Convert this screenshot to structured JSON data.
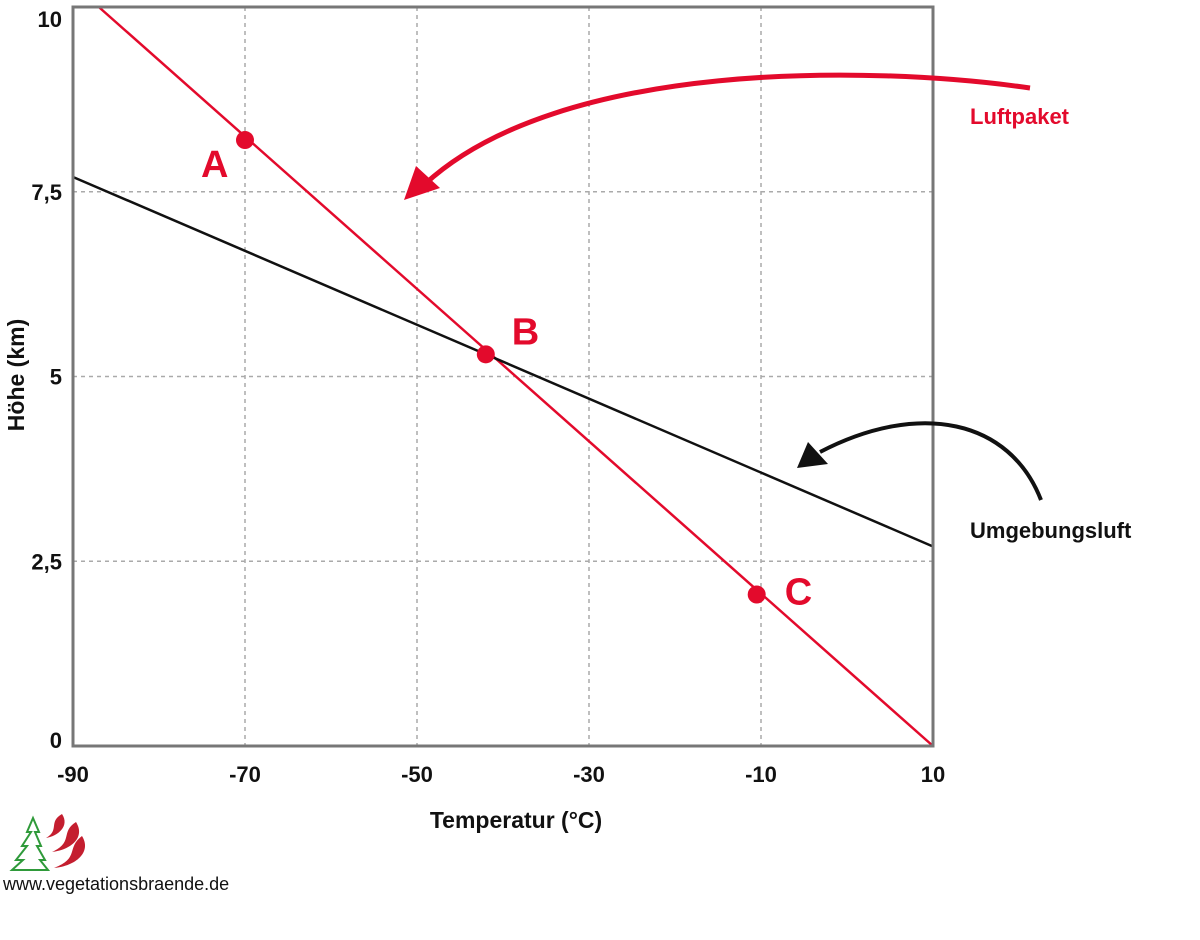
{
  "chart_data": {
    "type": "line",
    "title": "",
    "xlabel": "Temperatur (°C)",
    "ylabel": "Höhe (km)",
    "xlim": [
      -90,
      10
    ],
    "ylim": [
      0,
      10
    ],
    "x_ticks": [
      -90,
      -70,
      -50,
      -30,
      -10,
      10
    ],
    "x_tick_labels": [
      "-90",
      "-70",
      "-50",
      "-30",
      "-10",
      "10"
    ],
    "y_ticks": [
      0,
      2.5,
      5,
      7.5,
      10
    ],
    "y_tick_labels": [
      "0",
      "2,5",
      "5",
      "7,5",
      "10"
    ],
    "grid": true,
    "series": [
      {
        "name": "Luftpaket",
        "color": "#e30a2c",
        "points": [
          [
            -87,
            10
          ],
          [
            10,
            0
          ]
        ]
      },
      {
        "name": "Umgebungsluft",
        "color": "#111111",
        "points": [
          [
            -90,
            7.7
          ],
          [
            10,
            2.7
          ]
        ]
      }
    ],
    "labeled_points": [
      {
        "label": "A",
        "x": -70,
        "y": 8.2
      },
      {
        "label": "B",
        "x": -42,
        "y": 5.3
      },
      {
        "label": "C",
        "x": -10.5,
        "y": 2.05
      }
    ],
    "annotations": [
      {
        "text": "Luftpaket",
        "color": "#e30a2c"
      },
      {
        "text": "Umgebungsluft",
        "color": "#111111"
      }
    ]
  },
  "footer": {
    "website": "www.vegetationsbraende.de",
    "logo_icon": "tree-and-flame-logo-icon"
  }
}
